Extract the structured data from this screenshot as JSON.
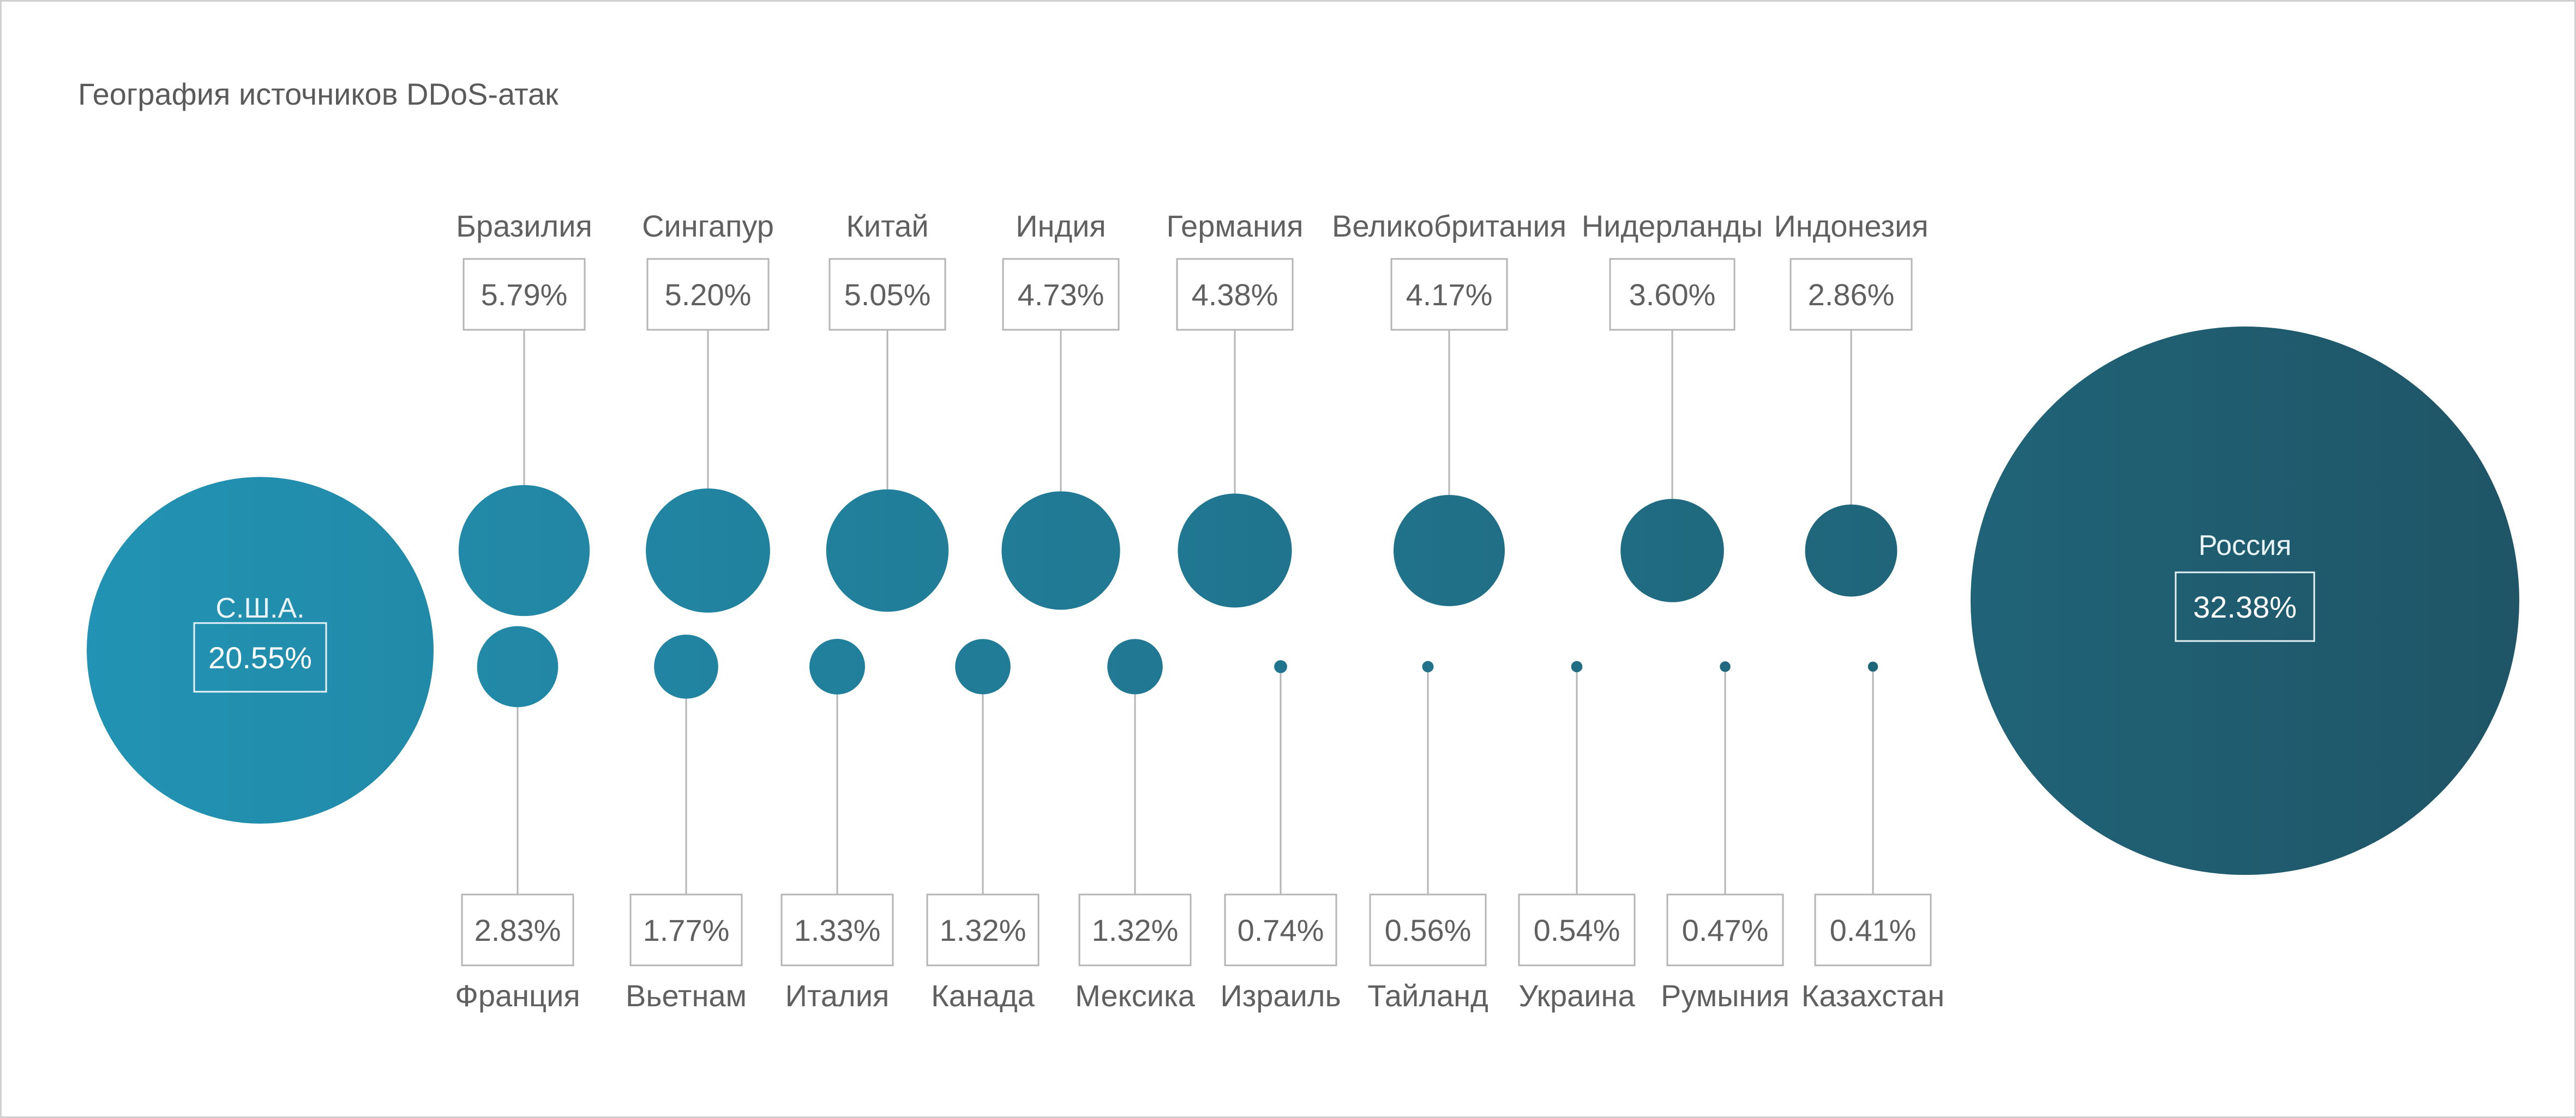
{
  "chart_data": {
    "type": "bubble",
    "title": "География источников DDoS-атак",
    "unit": "%",
    "colors": {
      "light": "#2293b4",
      "dark": "#1f5566",
      "box_stroke": "#b5b5b5",
      "leader": "#b5b5b5",
      "text": "#606060"
    },
    "large": [
      {
        "name": "С.Ш.А.",
        "value": 20.55,
        "label": "20.55%"
      },
      {
        "name": "Россия",
        "value": 32.38,
        "label": "32.38%"
      }
    ],
    "top_row": [
      {
        "name": "Бразилия",
        "value": 5.79,
        "label": "5.79%"
      },
      {
        "name": "Сингапур",
        "value": 5.2,
        "label": "5.20%"
      },
      {
        "name": "Китай",
        "value": 5.05,
        "label": "5.05%"
      },
      {
        "name": "Индия",
        "value": 4.73,
        "label": "4.73%"
      },
      {
        "name": "Германия",
        "value": 4.38,
        "label": "4.38%"
      },
      {
        "name": "Великобритания",
        "value": 4.17,
        "label": "4.17%"
      },
      {
        "name": "Нидерланды",
        "value": 3.6,
        "label": "3.60%"
      },
      {
        "name": "Индонезия",
        "value": 2.86,
        "label": "2.86%"
      }
    ],
    "bottom_row": [
      {
        "name": "Франция",
        "value": 2.83,
        "label": "2.83%"
      },
      {
        "name": "Вьетнам",
        "value": 1.77,
        "label": "1.77%"
      },
      {
        "name": "Италия",
        "value": 1.33,
        "label": "1.33%"
      },
      {
        "name": "Канада",
        "value": 1.32,
        "label": "1.32%"
      },
      {
        "name": "Мексика",
        "value": 1.32,
        "label": "1.32%"
      },
      {
        "name": "Израиль",
        "value": 0.74,
        "label": "0.74%"
      },
      {
        "name": "Тайланд",
        "value": 0.56,
        "label": "0.56%"
      },
      {
        "name": "Украина",
        "value": 0.54,
        "label": "0.54%"
      },
      {
        "name": "Румыния",
        "value": 0.47,
        "label": "0.47%"
      },
      {
        "name": "Казахстан",
        "value": 0.41,
        "label": "0.41%"
      }
    ]
  }
}
